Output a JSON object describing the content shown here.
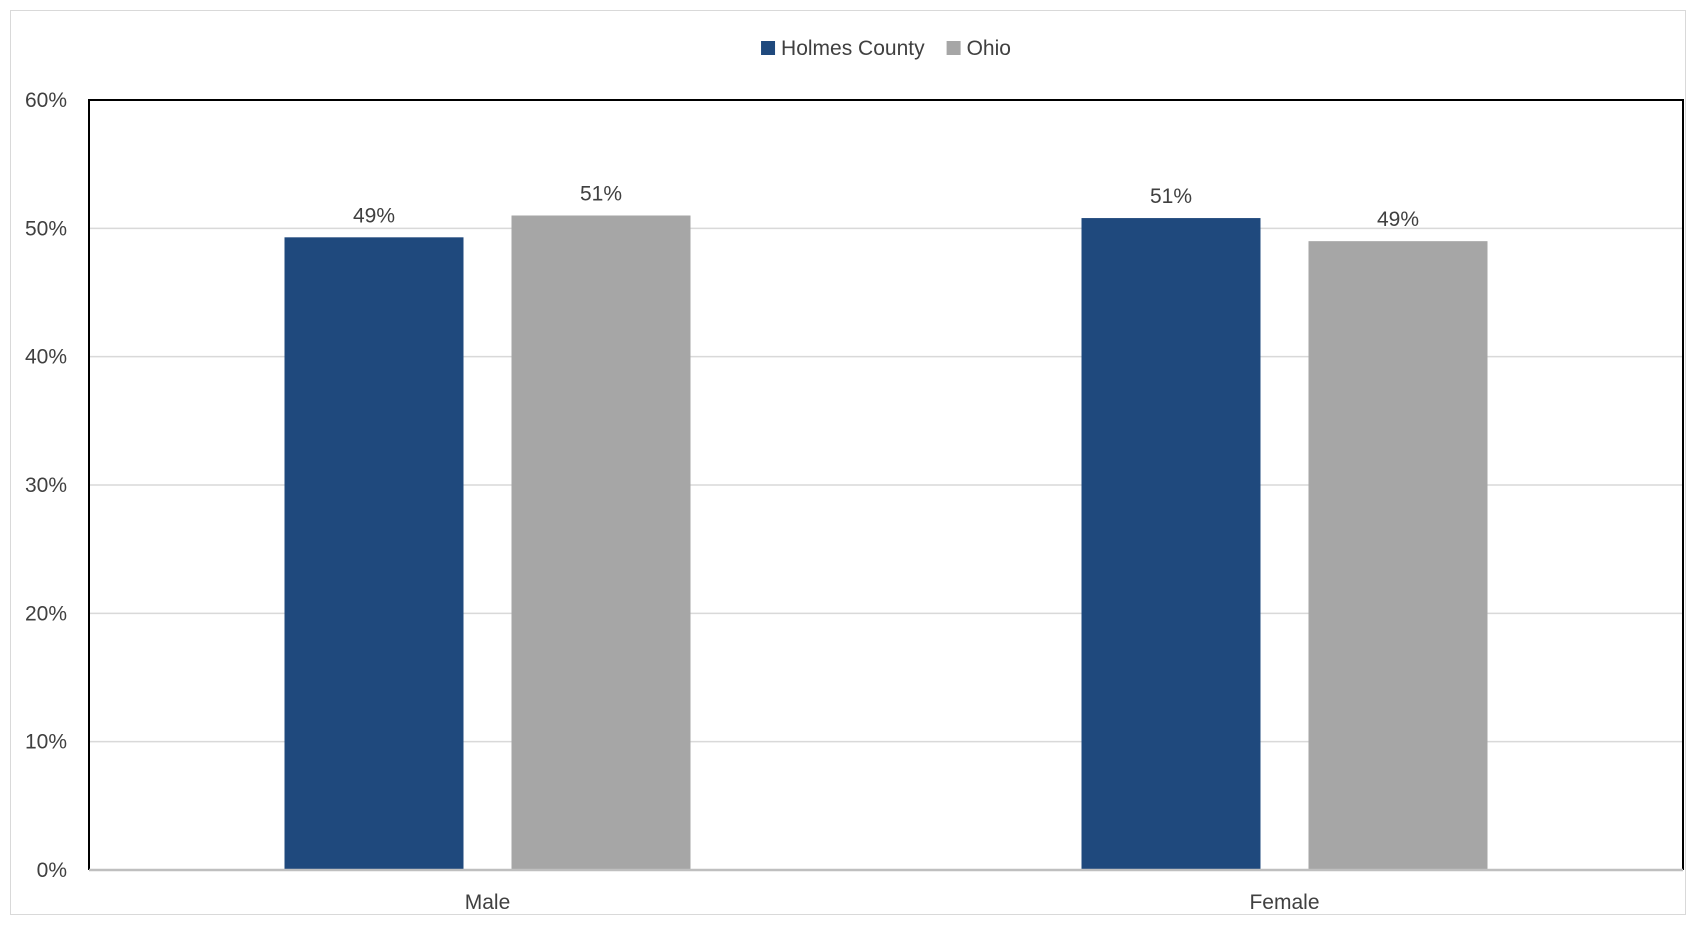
{
  "chart_data": {
    "type": "bar",
    "title": "",
    "xlabel": "",
    "ylabel": "",
    "categories": [
      "Male",
      "Female"
    ],
    "series": [
      {
        "name": "Holmes County",
        "color": "#1f497d",
        "values": [
          49.3,
          50.8
        ],
        "labels": [
          "49%",
          "51%"
        ]
      },
      {
        "name": "Ohio",
        "color": "#a6a6a6",
        "values": [
          51.0,
          49.0
        ],
        "labels": [
          "51%",
          "49%"
        ]
      }
    ],
    "ylim": [
      0,
      60
    ],
    "yticks": [
      0,
      10,
      20,
      30,
      40,
      50,
      60
    ],
    "ytick_labels": [
      "0%",
      "10%",
      "20%",
      "30%",
      "40%",
      "50%",
      "60%"
    ],
    "grid": true,
    "legend_position": "top-center",
    "gridline_color": "#d9d9d9",
    "plot_border_color": "#000000"
  }
}
